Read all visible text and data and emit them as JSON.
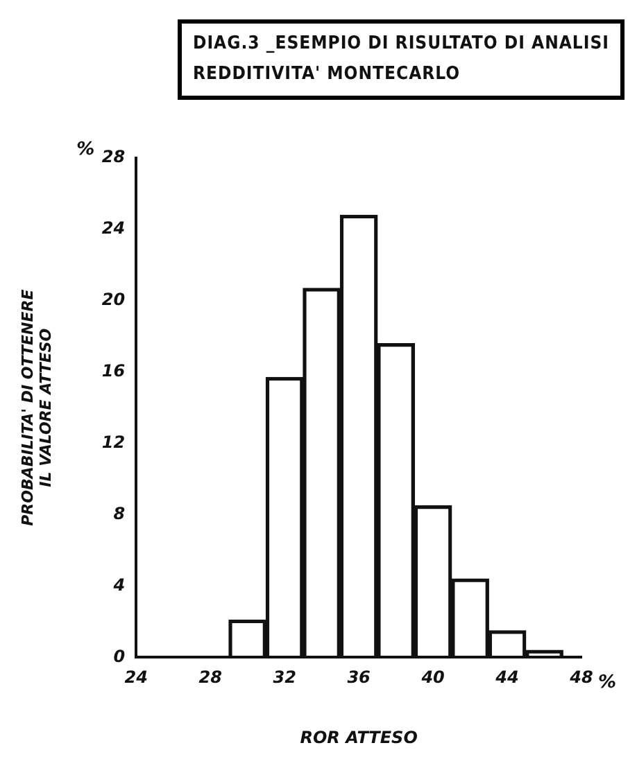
{
  "chart_data": {
    "type": "bar",
    "title": "DIAG.3 _ESEMPIO DI RISULTATO DI ANALISI REDDITIVITA' MONTECARLO",
    "xlabel": "ROR ATTESO",
    "ylabel": "PROBABILITA' DI OTTENERE\nIL VALORE ATTESO",
    "annotations": [
      "%",
      "%"
    ],
    "x": [
      30,
      32,
      34,
      36,
      38,
      40,
      42,
      44,
      46
    ],
    "values": [
      2.1,
      15.7,
      20.7,
      24.8,
      17.6,
      8.5,
      4.4,
      1.5,
      0.4
    ],
    "color": "#111111",
    "xlim": [
      24,
      48
    ],
    "xticks": [
      24,
      28,
      32,
      36,
      40,
      44,
      48
    ],
    "ylim": [
      0,
      28
    ],
    "yticks": [
      0,
      4,
      8,
      12,
      16,
      20,
      24,
      28
    ],
    "grid": false,
    "legend": false
  }
}
